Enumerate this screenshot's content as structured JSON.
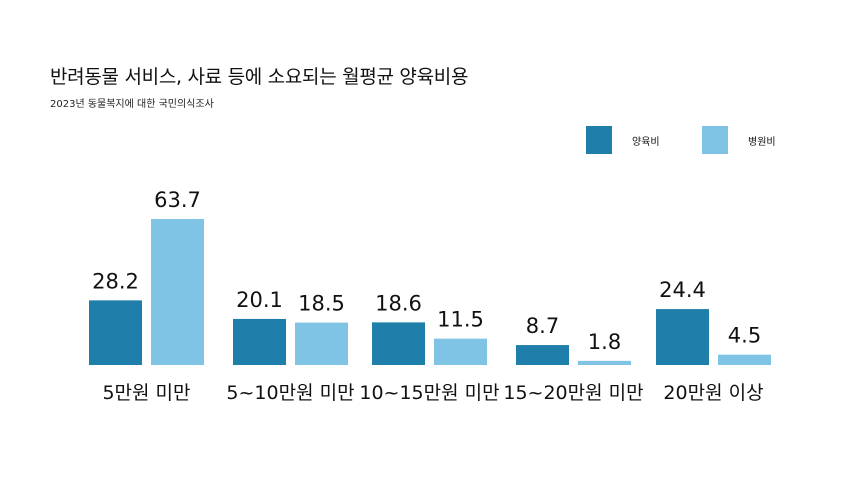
{
  "chart_data": {
    "type": "bar",
    "title": "반려동물 서비스, 사료 등에 소요되는 월평균 양육비용",
    "subtitle": "2023년 동물복지에 대한 국민의식조사",
    "categories": [
      "5만원 미만",
      "5~10만원 미만",
      "10~15만원 미만",
      "15~20만원 미만",
      "20만원 이상"
    ],
    "series": [
      {
        "name": "양육비",
        "color": "#1f7faa",
        "values": [
          28.2,
          20.1,
          18.6,
          8.7,
          24.4
        ]
      },
      {
        "name": "병원비",
        "color": "#7fc4e4",
        "values": [
          63.7,
          18.5,
          11.5,
          1.8,
          4.5
        ]
      }
    ],
    "xlabel": "",
    "ylabel": "",
    "ylim": [
      0,
      63.7
    ],
    "grid": false,
    "legend": "top-right"
  }
}
